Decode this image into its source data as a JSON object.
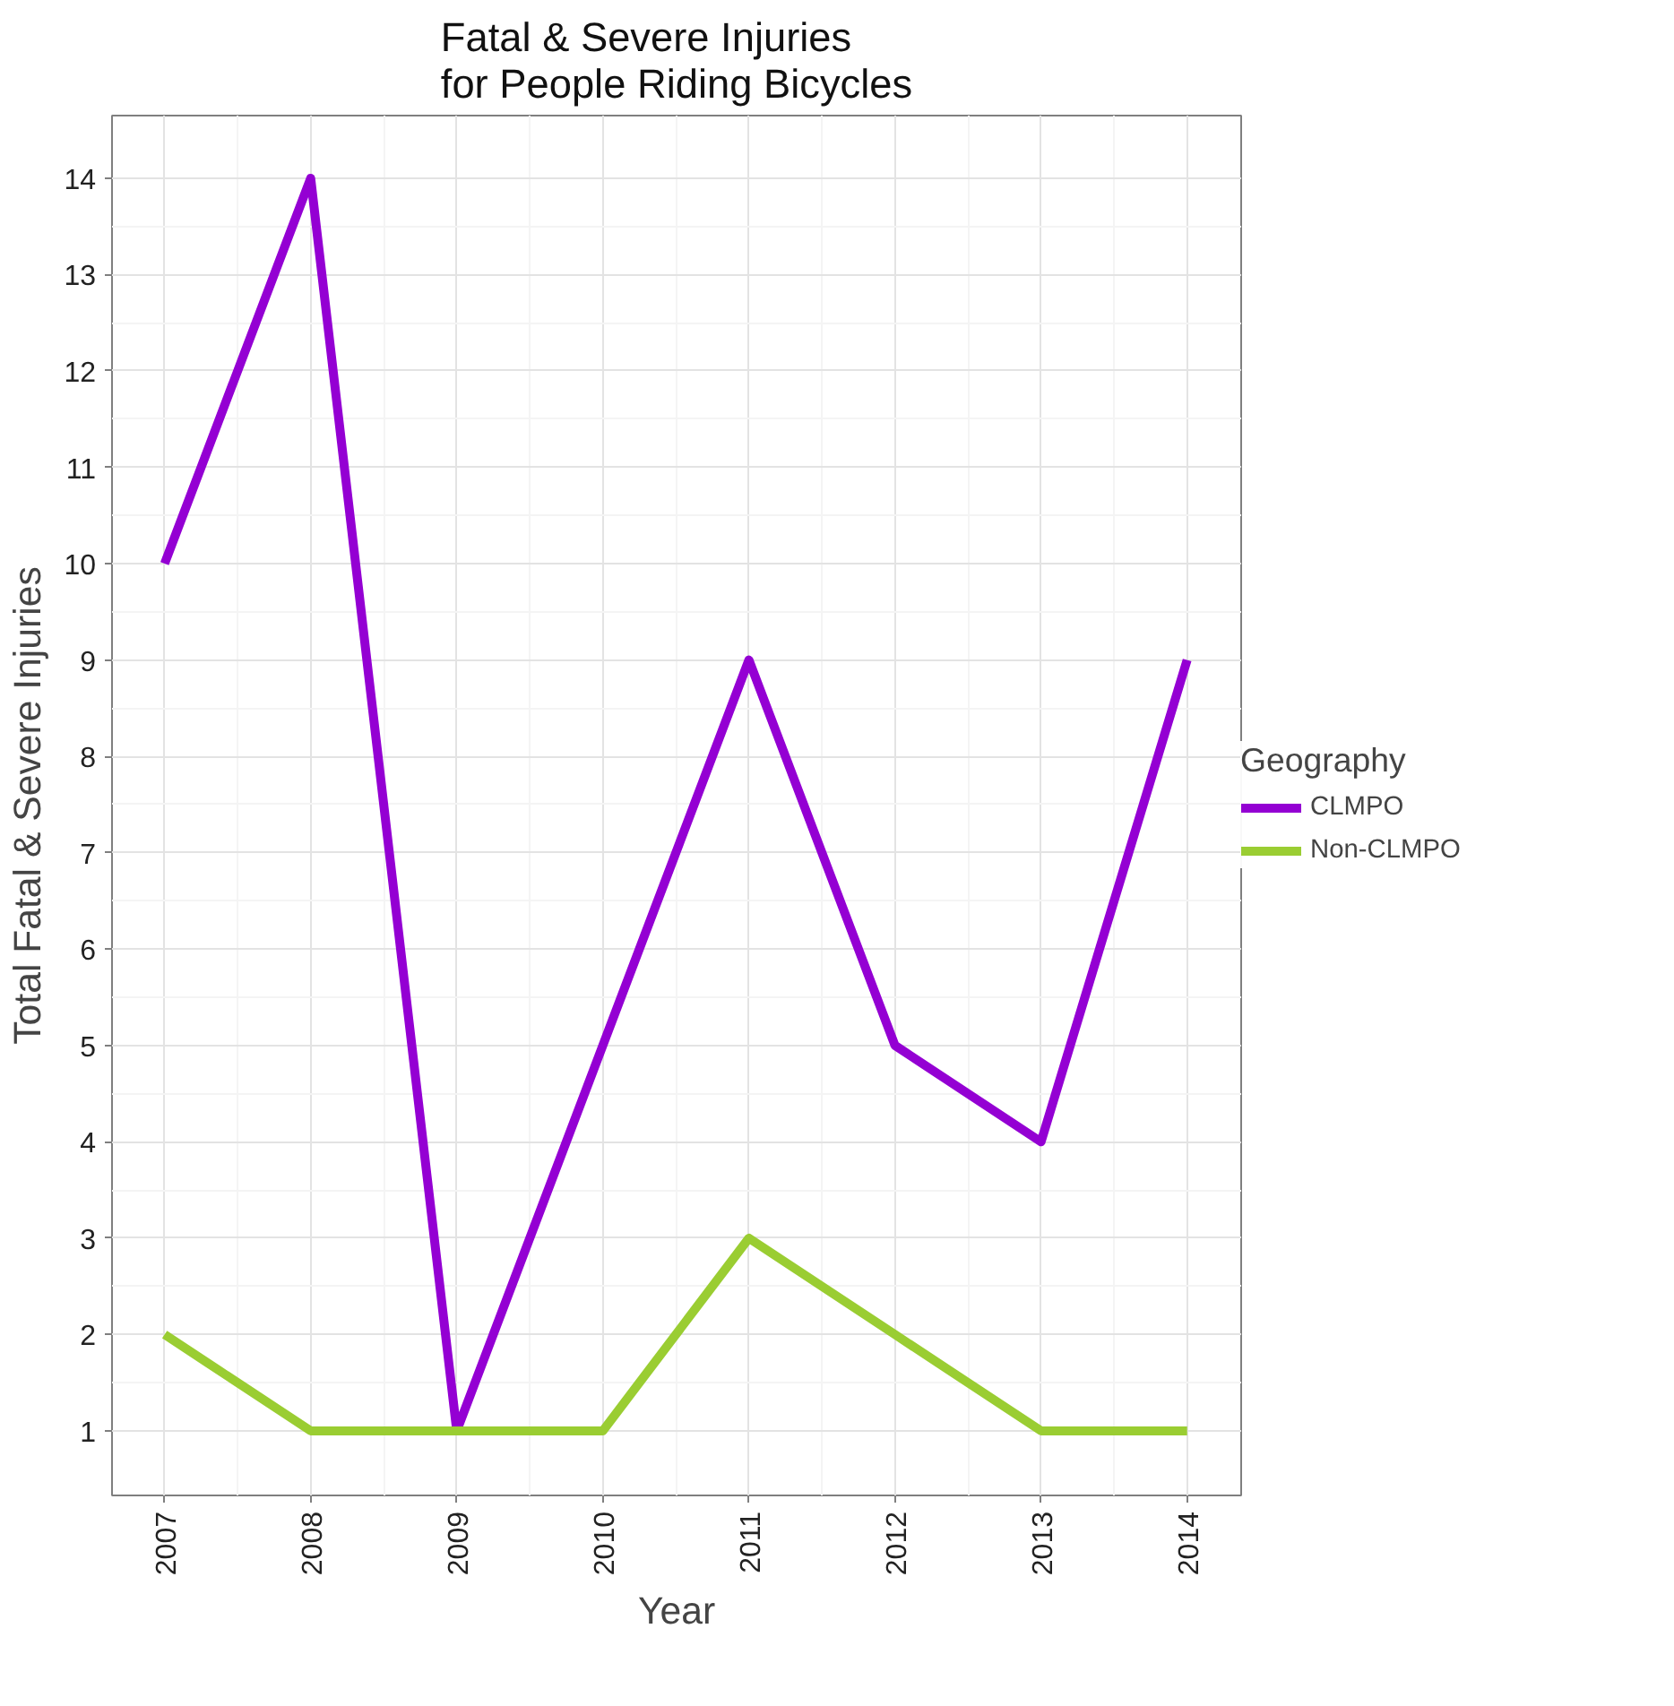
{
  "chart_data": {
    "type": "line",
    "title": "Fatal & Severe Injuries\nfor People Riding Bicycles",
    "xlabel": "Year",
    "ylabel": "Total Fatal & Severe Injuries",
    "legend_title": "Geography",
    "x": [
      2007,
      2008,
      2009,
      2010,
      2011,
      2012,
      2013,
      2014
    ],
    "series": [
      {
        "name": "CLMPO",
        "color": "#9400d3",
        "values": [
          10,
          14,
          1,
          5,
          9,
          5,
          4,
          9
        ]
      },
      {
        "name": "Non-CLMPO",
        "color": "#9acd32",
        "values": [
          2,
          1,
          1,
          1,
          3,
          2,
          1,
          1
        ]
      }
    ],
    "xlim": [
      2006.64,
      2014.37
    ],
    "ylim": [
      0.33,
      14.65
    ],
    "xticks": [
      2007,
      2008,
      2009,
      2010,
      2011,
      2012,
      2013,
      2014
    ],
    "yticks": [
      1,
      2,
      3,
      4,
      5,
      6,
      7,
      8,
      9,
      10,
      11,
      12,
      13,
      14
    ],
    "grid": true,
    "legend": "right",
    "marker": "none",
    "line_style": "solid"
  }
}
